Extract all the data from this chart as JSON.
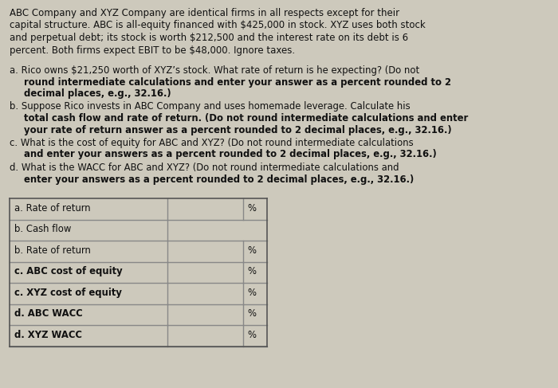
{
  "background_color": "#cdc9bc",
  "text_color": "#111111",
  "intro_lines": [
    "ABC Company and XYZ Company are identical firms in all respects except for their",
    "capital structure. ABC is all-equity financed with $425,000 in stock. XYZ uses both stock",
    "and perpetual debt; its stock is worth $212,500 and the interest rate on its debt is 6",
    "percent. Both firms expect EBIT to be $48,000. Ignore taxes."
  ],
  "question_blocks": [
    {
      "lines": [
        {
          "text": "a. Rico owns $21,250 worth of XYZ’s stock. What rate of return is he expecting? (Do not",
          "bold": false,
          "indent": false
        },
        {
          "text": "round intermediate calculations and enter your answer as a percent rounded to 2",
          "bold": true,
          "indent": true
        },
        {
          "text": "decimal places, e.g., 32.16.)",
          "bold": true,
          "indent": true
        }
      ]
    },
    {
      "lines": [
        {
          "text": "b. Suppose Rico invests in ABC Company and uses homemade leverage. Calculate his",
          "bold": false,
          "indent": false
        },
        {
          "text": "total cash flow and rate of return. (Do not round intermediate calculations and enter",
          "bold": true,
          "indent": true
        },
        {
          "text": "your rate of return answer as a percent rounded to 2 decimal places, e.g., 32.16.)",
          "bold": true,
          "indent": true
        }
      ]
    },
    {
      "lines": [
        {
          "text": "c. What is the cost of equity for ABC and XYZ? (Do not round intermediate calculations",
          "bold": false,
          "indent": false
        },
        {
          "text": "and enter your answers as a percent rounded to 2 decimal places, e.g., 32.16.)",
          "bold": true,
          "indent": true
        }
      ]
    },
    {
      "lines": [
        {
          "text": "d. What is the WACC for ABC and XYZ? (Do not round intermediate calculations and",
          "bold": false,
          "indent": false
        },
        {
          "text": "enter your answers as a percent rounded to 2 decimal places, e.g., 32.16.)",
          "bold": true,
          "indent": true
        }
      ]
    }
  ],
  "table_rows": [
    {
      "label": "a. Rate of return",
      "bold_label": false,
      "has_percent": true
    },
    {
      "label": "b. Cash flow",
      "bold_label": false,
      "has_percent": false
    },
    {
      "label": "b. Rate of return",
      "bold_label": false,
      "has_percent": true
    },
    {
      "label": "c. ABC cost of equity",
      "bold_label": true,
      "has_percent": true
    },
    {
      "label": "c. XYZ cost of equity",
      "bold_label": true,
      "has_percent": true
    },
    {
      "label": "d. ABC WACC",
      "bold_label": true,
      "has_percent": true
    },
    {
      "label": "d. XYZ WACC",
      "bold_label": true,
      "has_percent": true
    }
  ],
  "fs_intro": 8.5,
  "fs_q": 8.4,
  "fs_table": 8.4
}
